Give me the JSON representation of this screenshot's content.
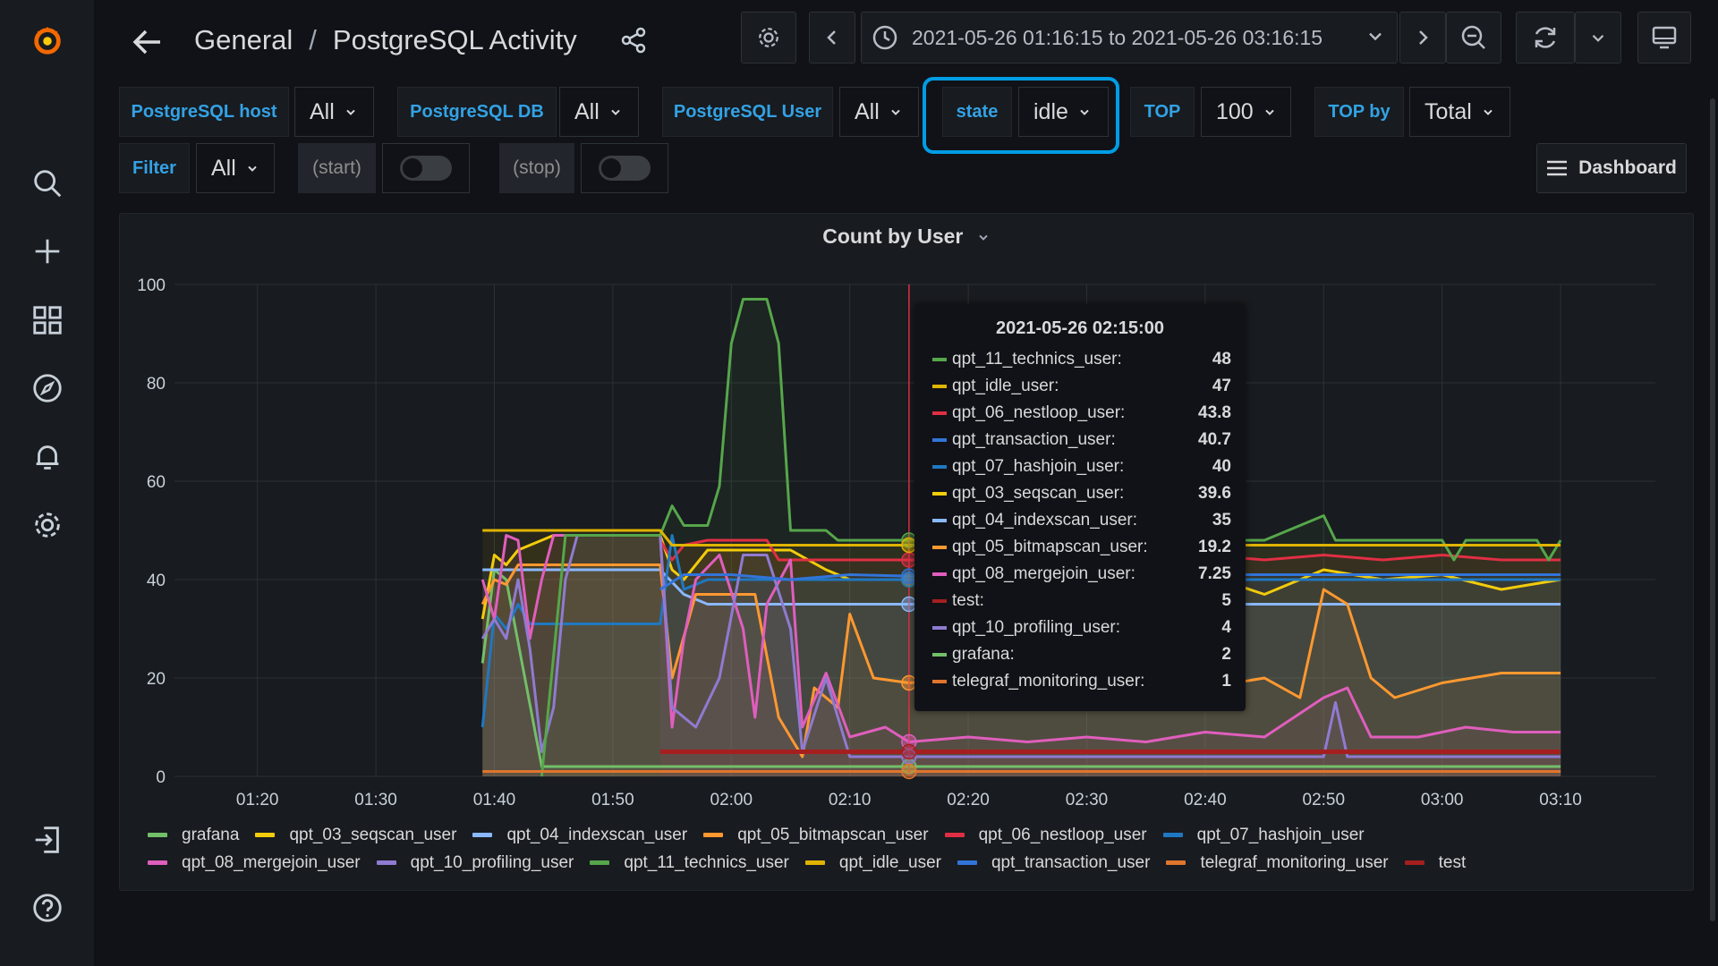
{
  "header": {
    "folder": "General",
    "separator": "/",
    "dashboard_title": "PostgreSQL Activity",
    "time_range": "2021-05-26 01:16:15 to 2021-05-26 03:16:15"
  },
  "variables": {
    "host_label": "PostgreSQL host",
    "host_value": "All",
    "db_label": "PostgreSQL DB",
    "db_value": "All",
    "user_label": "PostgreSQL User",
    "user_value": "All",
    "state_label": "state",
    "state_value": "idle",
    "top_label": "TOP",
    "top_value": "100",
    "topby_label": "TOP by",
    "topby_value": "Total",
    "filter_label": "Filter",
    "filter_value": "All",
    "start_label": "(start)",
    "stop_label": "(stop)",
    "dashboard_button": "Dashboard"
  },
  "panel": {
    "title": "Count by User"
  },
  "tooltip": {
    "time": "2021-05-26 02:15:00",
    "rows": [
      {
        "name": "qpt_11_technics_user:",
        "value": "48",
        "color": "#56a64b"
      },
      {
        "name": "qpt_idle_user:",
        "value": "47",
        "color": "#e0b400"
      },
      {
        "name": "qpt_06_nestloop_user:",
        "value": "43.8",
        "color": "#e02f44"
      },
      {
        "name": "qpt_transaction_user:",
        "value": "40.7",
        "color": "#3274d9"
      },
      {
        "name": "qpt_07_hashjoin_user:",
        "value": "40",
        "color": "#1f78c1"
      },
      {
        "name": "qpt_03_seqscan_user:",
        "value": "39.6",
        "color": "#f2cc0c"
      },
      {
        "name": "qpt_04_indexscan_user:",
        "value": "35",
        "color": "#8ab8ff"
      },
      {
        "name": "qpt_05_bitmapscan_user:",
        "value": "19.2",
        "color": "#ff9830"
      },
      {
        "name": "qpt_08_mergejoin_user:",
        "value": "7.25",
        "color": "#e05ebd"
      },
      {
        "name": "test:",
        "value": "5",
        "color": "#a51f1f"
      },
      {
        "name": "qpt_10_profiling_user:",
        "value": "4",
        "color": "#8f7bd1"
      },
      {
        "name": "grafana:",
        "value": "2",
        "color": "#73bf69"
      },
      {
        "name": "telegraf_monitoring_user:",
        "value": "1",
        "color": "#e0752d"
      }
    ]
  },
  "colors": {
    "accent": "#33a2e5",
    "highlight": "#009de5",
    "background": "#111217",
    "panel": "#181b1f"
  },
  "chart_data": {
    "type": "line",
    "title": "Count by User",
    "ylim": [
      0,
      100
    ],
    "y_ticks": [
      "0",
      "20",
      "40",
      "60",
      "80",
      "100"
    ],
    "x_ticks": [
      "01:20",
      "01:30",
      "01:40",
      "01:50",
      "02:00",
      "02:10",
      "02:20",
      "02:30",
      "02:40",
      "02:50",
      "03:00",
      "03:10"
    ],
    "x_tick_minutes": [
      80,
      90,
      100,
      110,
      120,
      130,
      140,
      150,
      160,
      170,
      180,
      190
    ],
    "xlim_minutes": [
      73,
      198
    ],
    "cursor_minute": 135,
    "grid": true,
    "legend_placement": "bottom",
    "series": [
      {
        "name": "grafana",
        "color": "#73bf69",
        "points": [
          [
            99,
            23
          ],
          [
            100,
            42
          ],
          [
            101,
            40
          ],
          [
            104,
            2
          ],
          [
            135,
            2
          ],
          [
            190,
            2
          ]
        ]
      },
      {
        "name": "qpt_03_seqscan_user",
        "color": "#f2cc0c",
        "points": [
          [
            99,
            32
          ],
          [
            100,
            45
          ],
          [
            101,
            43
          ],
          [
            102,
            46
          ],
          [
            105,
            49
          ],
          [
            114,
            49
          ],
          [
            115,
            42
          ],
          [
            116,
            40
          ],
          [
            118,
            46
          ],
          [
            125,
            46
          ],
          [
            128,
            42
          ],
          [
            130,
            40
          ],
          [
            135,
            40
          ],
          [
            140,
            40
          ],
          [
            145,
            39
          ],
          [
            150,
            41
          ],
          [
            155,
            40
          ],
          [
            160,
            41
          ],
          [
            165,
            37
          ],
          [
            170,
            42
          ],
          [
            175,
            40
          ],
          [
            180,
            41
          ],
          [
            185,
            38
          ],
          [
            190,
            40
          ]
        ]
      },
      {
        "name": "qpt_04_indexscan_user",
        "color": "#8ab8ff",
        "points": [
          [
            99,
            42
          ],
          [
            102,
            42
          ],
          [
            114,
            42
          ],
          [
            116,
            37
          ],
          [
            118,
            35
          ],
          [
            135,
            35
          ],
          [
            190,
            35
          ]
        ]
      },
      {
        "name": "qpt_05_bitmapscan_user",
        "color": "#ff9830",
        "points": [
          [
            99,
            35
          ],
          [
            100,
            40
          ],
          [
            101,
            39
          ],
          [
            102,
            43
          ],
          [
            114,
            43
          ],
          [
            115,
            20
          ],
          [
            117,
            37
          ],
          [
            122,
            37
          ],
          [
            124,
            12
          ],
          [
            126,
            4
          ],
          [
            127,
            18
          ],
          [
            129,
            14
          ],
          [
            130,
            33
          ],
          [
            132,
            20
          ],
          [
            135,
            19
          ],
          [
            140,
            20
          ],
          [
            145,
            17
          ],
          [
            150,
            16
          ],
          [
            155,
            14
          ],
          [
            160,
            18
          ],
          [
            165,
            20
          ],
          [
            168,
            16
          ],
          [
            170,
            38
          ],
          [
            172,
            35
          ],
          [
            174,
            20
          ],
          [
            176,
            16
          ],
          [
            180,
            19
          ],
          [
            185,
            21
          ],
          [
            190,
            21
          ]
        ]
      },
      {
        "name": "qpt_06_nestloop_user",
        "color": "#e02f44",
        "points": [
          [
            114,
            48
          ],
          [
            115,
            44
          ],
          [
            116,
            47
          ],
          [
            118,
            48
          ],
          [
            123,
            48
          ],
          [
            124,
            44
          ],
          [
            135,
            44
          ],
          [
            140,
            44
          ],
          [
            145,
            44
          ],
          [
            150,
            45
          ],
          [
            155,
            44
          ],
          [
            160,
            45
          ],
          [
            165,
            44
          ],
          [
            170,
            45
          ],
          [
            175,
            44
          ],
          [
            180,
            45
          ],
          [
            185,
            44
          ],
          [
            190,
            44
          ]
        ]
      },
      {
        "name": "qpt_07_hashjoin_user",
        "color": "#1f78c1",
        "points": [
          [
            99,
            10
          ],
          [
            100,
            33
          ],
          [
            101,
            30
          ],
          [
            102,
            35
          ],
          [
            103,
            31
          ],
          [
            114,
            31
          ],
          [
            115,
            49
          ],
          [
            116,
            38
          ],
          [
            118,
            40
          ],
          [
            125,
            40
          ],
          [
            130,
            40
          ],
          [
            135,
            40
          ],
          [
            150,
            40
          ],
          [
            170,
            40
          ],
          [
            190,
            40
          ]
        ]
      },
      {
        "name": "qpt_08_mergejoin_user",
        "color": "#e05ebd",
        "points": [
          [
            99,
            40
          ],
          [
            100,
            32
          ],
          [
            101,
            49
          ],
          [
            102,
            48
          ],
          [
            103,
            28
          ],
          [
            104,
            40
          ],
          [
            105,
            49
          ],
          [
            114,
            49
          ],
          [
            115,
            10
          ],
          [
            116,
            28
          ],
          [
            117,
            40
          ],
          [
            119,
            45
          ],
          [
            121,
            30
          ],
          [
            122,
            12
          ],
          [
            123,
            35
          ],
          [
            125,
            44
          ],
          [
            126,
            10
          ],
          [
            128,
            21
          ],
          [
            130,
            8
          ],
          [
            133,
            10
          ],
          [
            135,
            7
          ],
          [
            140,
            8
          ],
          [
            145,
            7
          ],
          [
            150,
            8
          ],
          [
            155,
            7
          ],
          [
            160,
            9
          ],
          [
            165,
            8
          ],
          [
            170,
            16
          ],
          [
            172,
            18
          ],
          [
            174,
            8
          ],
          [
            178,
            8
          ],
          [
            182,
            10
          ],
          [
            186,
            9
          ],
          [
            190,
            9
          ]
        ]
      },
      {
        "name": "qpt_10_profiling_user",
        "color": "#8f7bd1",
        "points": [
          [
            99,
            28
          ],
          [
            100,
            32
          ],
          [
            101,
            28
          ],
          [
            102,
            40
          ],
          [
            103,
            26
          ],
          [
            104,
            5
          ],
          [
            105,
            14
          ],
          [
            106,
            40
          ],
          [
            107,
            49
          ],
          [
            114,
            49
          ],
          [
            115,
            14
          ],
          [
            117,
            10
          ],
          [
            119,
            20
          ],
          [
            121,
            45
          ],
          [
            123,
            45
          ],
          [
            125,
            30
          ],
          [
            126,
            5
          ],
          [
            128,
            20
          ],
          [
            130,
            4
          ],
          [
            135,
            4
          ],
          [
            150,
            4
          ],
          [
            170,
            4
          ],
          [
            171,
            15
          ],
          [
            172,
            4
          ],
          [
            190,
            4
          ]
        ]
      },
      {
        "name": "qpt_11_technics_user",
        "color": "#56a64b",
        "points": [
          [
            104,
            0
          ],
          [
            106,
            49
          ],
          [
            107,
            49
          ],
          [
            114,
            49
          ],
          [
            115,
            55
          ],
          [
            116,
            51
          ],
          [
            118,
            51
          ],
          [
            119,
            59
          ],
          [
            120,
            88
          ],
          [
            121,
            97
          ],
          [
            123,
            97
          ],
          [
            124,
            88
          ],
          [
            125,
            50
          ],
          [
            128,
            50
          ],
          [
            129,
            48
          ],
          [
            135,
            48
          ],
          [
            150,
            48
          ],
          [
            165,
            48
          ],
          [
            170,
            53
          ],
          [
            171,
            48
          ],
          [
            180,
            48
          ],
          [
            181,
            44
          ],
          [
            182,
            48
          ],
          [
            188,
            48
          ],
          [
            189,
            44
          ],
          [
            190,
            48
          ]
        ]
      },
      {
        "name": "qpt_idle_user",
        "color": "#e0b400",
        "points": [
          [
            99,
            50
          ],
          [
            114,
            50
          ],
          [
            115,
            47
          ],
          [
            135,
            47
          ],
          [
            160,
            47
          ],
          [
            190,
            47
          ]
        ]
      },
      {
        "name": "qpt_transaction_user",
        "color": "#3274d9",
        "points": [
          [
            114,
            38
          ],
          [
            116,
            41
          ],
          [
            120,
            41
          ],
          [
            125,
            40
          ],
          [
            130,
            41
          ],
          [
            135,
            40.7
          ],
          [
            150,
            41
          ],
          [
            170,
            41
          ],
          [
            190,
            41
          ]
        ]
      },
      {
        "name": "telegraf_monitoring_user",
        "color": "#e0752d",
        "points": [
          [
            99,
            1
          ],
          [
            135,
            1
          ],
          [
            190,
            1
          ]
        ]
      },
      {
        "name": "test",
        "color": "#a51f1f",
        "points": [
          [
            114,
            5
          ],
          [
            135,
            5
          ],
          [
            190,
            5
          ]
        ]
      }
    ]
  },
  "legend": {
    "row1": [
      {
        "name": "grafana",
        "color": "#73bf69"
      },
      {
        "name": "qpt_03_seqscan_user",
        "color": "#f2cc0c"
      },
      {
        "name": "qpt_04_indexscan_user",
        "color": "#8ab8ff"
      },
      {
        "name": "qpt_05_bitmapscan_user",
        "color": "#ff9830"
      },
      {
        "name": "qpt_06_nestloop_user",
        "color": "#e02f44"
      },
      {
        "name": "qpt_07_hashjoin_user",
        "color": "#1f78c1"
      }
    ],
    "row2": [
      {
        "name": "qpt_08_mergejoin_user",
        "color": "#e05ebd"
      },
      {
        "name": "qpt_10_profiling_user",
        "color": "#8f7bd1"
      },
      {
        "name": "qpt_11_technics_user",
        "color": "#56a64b"
      },
      {
        "name": "qpt_idle_user",
        "color": "#e0b400"
      },
      {
        "name": "qpt_transaction_user",
        "color": "#3274d9"
      },
      {
        "name": "telegraf_monitoring_user",
        "color": "#e0752d"
      },
      {
        "name": "test",
        "color": "#a51f1f"
      }
    ]
  }
}
